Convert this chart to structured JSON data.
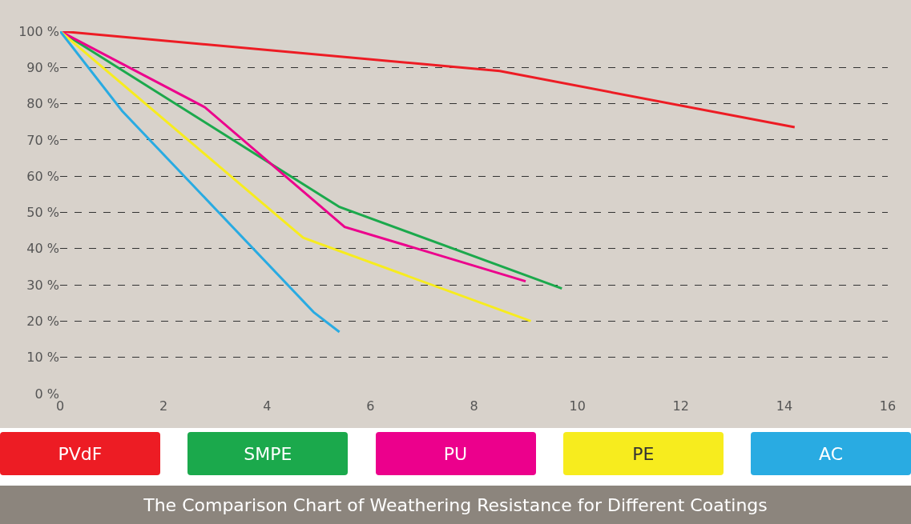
{
  "chart_data": {
    "type": "line",
    "title": "The Comparison Chart of Weathering Resistance for Different Coatings",
    "series": [
      {
        "name": "PVdF",
        "color": "#ed1c24",
        "x": [
          0,
          8.5,
          14.2
        ],
        "values": [
          100,
          89,
          73.5
        ]
      },
      {
        "name": "SMPE",
        "color": "#1ba94c",
        "x": [
          0,
          5.4,
          9.7
        ],
        "values": [
          100,
          51.5,
          29
        ]
      },
      {
        "name": "PU",
        "color": "#ec008c",
        "x": [
          0,
          2.8,
          5.5,
          9
        ],
        "values": [
          100,
          79,
          46,
          31
        ]
      },
      {
        "name": "PE",
        "color": "#f7ec1e",
        "x": [
          0,
          4.7,
          9.1
        ],
        "values": [
          100,
          43,
          20
        ]
      },
      {
        "name": "AC",
        "color": "#29abe2",
        "x": [
          0,
          1.2,
          4.9,
          5.4
        ],
        "values": [
          100,
          78,
          22.5,
          17
        ]
      }
    ],
    "xlim": [
      0,
      16
    ],
    "xticks": [
      0,
      2,
      4,
      6,
      8,
      10,
      12,
      14,
      16
    ],
    "ylim": [
      0,
      100
    ],
    "yticks": [
      {
        "value": 0,
        "label": "0 %"
      },
      {
        "value": 10,
        "label": "10 %"
      },
      {
        "value": 20,
        "label": "20 %"
      },
      {
        "value": 30,
        "label": "30 %"
      },
      {
        "value": 40,
        "label": "40 %"
      },
      {
        "value": 50,
        "label": "50 %"
      },
      {
        "value": 60,
        "label": "60 %"
      },
      {
        "value": 70,
        "label": "70 %"
      },
      {
        "value": 80,
        "label": "80 %"
      },
      {
        "value": 90,
        "label": "90 %"
      },
      {
        "value": 100,
        "label": "100 %"
      }
    ],
    "grid": "y",
    "legend": "bottom",
    "marker": "none",
    "line_style": "solid"
  }
}
